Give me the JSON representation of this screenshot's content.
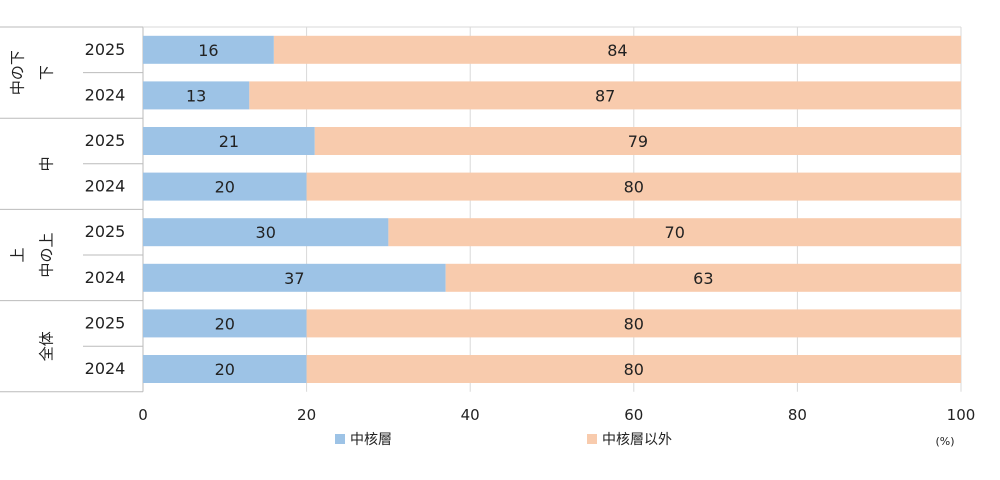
{
  "chart_data": {
    "type": "bar",
    "orientation": "horizontal",
    "stacked": true,
    "groups": [
      {
        "label_lines": [
          "中の下",
          "下"
        ],
        "rows": [
          {
            "year": "2025",
            "values": [
              16,
              84
            ]
          },
          {
            "year": "2024",
            "values": [
              13,
              87
            ]
          }
        ]
      },
      {
        "label_lines": [
          "中"
        ],
        "rows": [
          {
            "year": "2025",
            "values": [
              21,
              79
            ]
          },
          {
            "year": "2024",
            "values": [
              20,
              80
            ]
          }
        ]
      },
      {
        "label_lines": [
          "上",
          "中の上"
        ],
        "rows": [
          {
            "year": "2025",
            "values": [
              30,
              70
            ]
          },
          {
            "year": "2024",
            "values": [
              37,
              63
            ]
          }
        ]
      },
      {
        "label_lines": [
          "全体"
        ],
        "rows": [
          {
            "year": "2025",
            "values": [
              20,
              80
            ]
          },
          {
            "year": "2024",
            "values": [
              20,
              80
            ]
          }
        ]
      }
    ],
    "series": [
      {
        "name": "中核層",
        "color": "#9dc3e6"
      },
      {
        "name": "中核層以外",
        "color": "#f8cbad"
      }
    ],
    "xlim": [
      0,
      100
    ],
    "xticks": [
      0,
      20,
      40,
      60,
      80,
      100
    ],
    "unit_label": "(%)",
    "grid": true,
    "legend": "bottom"
  }
}
